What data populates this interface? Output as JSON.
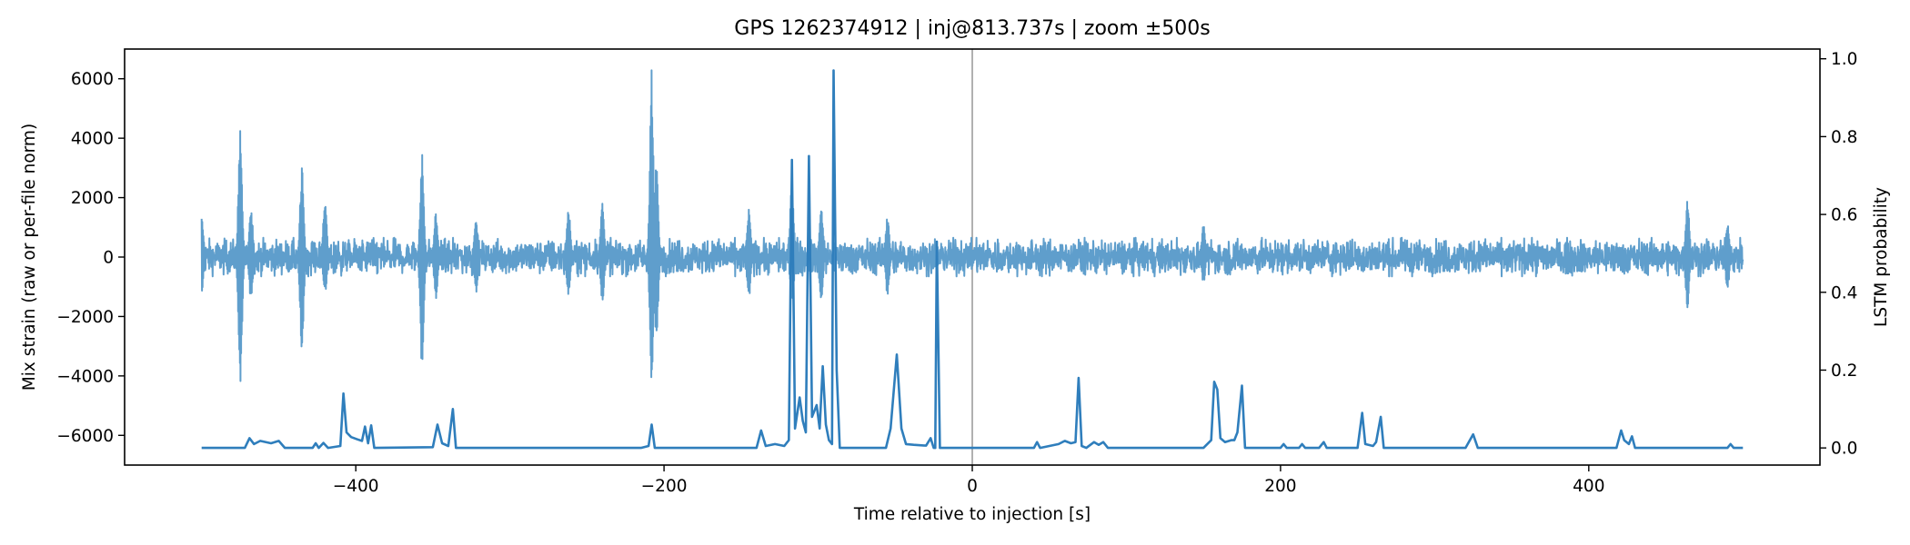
{
  "chart_data": {
    "type": "line",
    "title": "GPS 1262374912 | inj@813.737s | zoom ±500s",
    "xlabel": "Time relative to injection [s]",
    "ylabel_left": "Mix strain (raw or per-file norm)",
    "ylabel_right": "LSTM probability",
    "xlim": [
      -550,
      550
    ],
    "ylim_left": [
      -7000,
      7000
    ],
    "ylim_right": [
      -0.044,
      1.025
    ],
    "x_ticks": [
      -400,
      -200,
      0,
      200,
      400
    ],
    "x_tick_labels": [
      "−400",
      "−200",
      "0",
      "200",
      "400"
    ],
    "y_left_ticks": [
      -6000,
      -4000,
      -2000,
      0,
      2000,
      4000,
      6000
    ],
    "y_left_tick_labels": [
      "−6000",
      "−4000",
      "−2000",
      "0",
      "2000",
      "4000",
      "6000"
    ],
    "y_right_ticks": [
      0.0,
      0.2,
      0.4,
      0.6,
      0.8,
      1.0
    ],
    "y_right_tick_labels": [
      "0.0",
      "0.2",
      "0.4",
      "0.6",
      "0.8",
      "1.0"
    ],
    "reference_line_x": 0,
    "grid": false,
    "colors": {
      "strain": "#5f9ecc",
      "probability": "#2f7ebc",
      "reference_line": "#b0b0b0"
    },
    "series": [
      {
        "axis": "left",
        "x_range": [
          -500,
          500
        ],
        "baseline_amplitude": 500,
        "spikes": [
          {
            "x": -500,
            "max": 1400,
            "min": -1200
          },
          {
            "x": -475,
            "max": 4400,
            "min": -4500
          },
          {
            "x": -468,
            "max": 1700,
            "min": -1500
          },
          {
            "x": -435,
            "max": 3000,
            "min": -3200
          },
          {
            "x": -420,
            "max": 1900,
            "min": -1300
          },
          {
            "x": -357,
            "max": 3600,
            "min": -3800
          },
          {
            "x": -348,
            "max": 1500,
            "min": -1400
          },
          {
            "x": -322,
            "max": 1400,
            "min": -1200
          },
          {
            "x": -262,
            "max": 1700,
            "min": -1300
          },
          {
            "x": -240,
            "max": 1800,
            "min": -1500
          },
          {
            "x": -208,
            "max": 6400,
            "min": -4400
          },
          {
            "x": -205,
            "max": 3200,
            "min": -3000
          },
          {
            "x": -145,
            "max": 1600,
            "min": -1400
          },
          {
            "x": -117,
            "max": 2600,
            "min": -1800
          },
          {
            "x": -98,
            "max": 1800,
            "min": -1600
          },
          {
            "x": -55,
            "max": 1400,
            "min": -1300
          },
          {
            "x": 150,
            "max": 1100,
            "min": -900
          },
          {
            "x": 464,
            "max": 2000,
            "min": -1800
          },
          {
            "x": 490,
            "max": 1200,
            "min": -1100
          }
        ]
      },
      {
        "axis": "right",
        "points": [
          [
            -500,
            0.0
          ],
          [
            -472,
            0.0
          ],
          [
            -469,
            0.025
          ],
          [
            -466,
            0.01
          ],
          [
            -462,
            0.018
          ],
          [
            -455,
            0.012
          ],
          [
            -450,
            0.018
          ],
          [
            -446,
            0.0
          ],
          [
            -428,
            0.0
          ],
          [
            -426,
            0.012
          ],
          [
            -424,
            0.0
          ],
          [
            -421,
            0.013
          ],
          [
            -418,
            0.0
          ],
          [
            -410,
            0.005
          ],
          [
            -408,
            0.14
          ],
          [
            -406,
            0.04
          ],
          [
            -403,
            0.028
          ],
          [
            -399,
            0.022
          ],
          [
            -396,
            0.018
          ],
          [
            -394,
            0.055
          ],
          [
            -392,
            0.012
          ],
          [
            -390,
            0.058
          ],
          [
            -388,
            0.0
          ],
          [
            -350,
            0.002
          ],
          [
            -347,
            0.06
          ],
          [
            -344,
            0.012
          ],
          [
            -340,
            0.005
          ],
          [
            -337,
            0.1
          ],
          [
            -335,
            0.0
          ],
          [
            -215,
            0.0
          ],
          [
            -210,
            0.005
          ],
          [
            -208,
            0.06
          ],
          [
            -206,
            0.0
          ],
          [
            -140,
            0.0
          ],
          [
            -137,
            0.045
          ],
          [
            -134,
            0.005
          ],
          [
            -128,
            0.01
          ],
          [
            -122,
            0.005
          ],
          [
            -119,
            0.02
          ],
          [
            -117,
            0.74
          ],
          [
            -115,
            0.05
          ],
          [
            -112,
            0.13
          ],
          [
            -110,
            0.07
          ],
          [
            -108,
            0.04
          ],
          [
            -106,
            0.75
          ],
          [
            -104,
            0.08
          ],
          [
            -101,
            0.11
          ],
          [
            -99,
            0.05
          ],
          [
            -97,
            0.21
          ],
          [
            -95,
            0.06
          ],
          [
            -93,
            0.02
          ],
          [
            -91,
            0.01
          ],
          [
            -90,
            0.97
          ],
          [
            -88,
            0.2
          ],
          [
            -86,
            0.0
          ],
          [
            -56,
            0.0
          ],
          [
            -53,
            0.05
          ],
          [
            -49,
            0.24
          ],
          [
            -46,
            0.05
          ],
          [
            -43,
            0.01
          ],
          [
            -38,
            0.008
          ],
          [
            -30,
            0.006
          ],
          [
            -27,
            0.025
          ],
          [
            -25,
            0.0
          ],
          [
            -24,
            0.0
          ],
          [
            -23,
            0.53
          ],
          [
            -21,
            0.0
          ],
          [
            40,
            0.0
          ],
          [
            42,
            0.015
          ],
          [
            44,
            0.0
          ],
          [
            56,
            0.01
          ],
          [
            60,
            0.018
          ],
          [
            64,
            0.012
          ],
          [
            67,
            0.015
          ],
          [
            69,
            0.18
          ],
          [
            71,
            0.005
          ],
          [
            74,
            0.0
          ],
          [
            79,
            0.015
          ],
          [
            82,
            0.008
          ],
          [
            85,
            0.015
          ],
          [
            88,
            0.0
          ],
          [
            150,
            0.0
          ],
          [
            155,
            0.02
          ],
          [
            157,
            0.17
          ],
          [
            159,
            0.15
          ],
          [
            161,
            0.025
          ],
          [
            164,
            0.015
          ],
          [
            168,
            0.02
          ],
          [
            170,
            0.02
          ],
          [
            172,
            0.04
          ],
          [
            175,
            0.16
          ],
          [
            177,
            0.0
          ],
          [
            200,
            0.0
          ],
          [
            202,
            0.01
          ],
          [
            204,
            0.0
          ],
          [
            212,
            0.0
          ],
          [
            214,
            0.01
          ],
          [
            216,
            0.0
          ],
          [
            225,
            0.0
          ],
          [
            228,
            0.015
          ],
          [
            230,
            0.0
          ],
          [
            250,
            0.0
          ],
          [
            253,
            0.09
          ],
          [
            255,
            0.01
          ],
          [
            260,
            0.005
          ],
          [
            262,
            0.015
          ],
          [
            265,
            0.08
          ],
          [
            267,
            0.0
          ],
          [
            320,
            0.0
          ],
          [
            325,
            0.035
          ],
          [
            328,
            0.0
          ],
          [
            418,
            0.0
          ],
          [
            421,
            0.045
          ],
          [
            423,
            0.02
          ],
          [
            426,
            0.01
          ],
          [
            428,
            0.03
          ],
          [
            430,
            0.0
          ],
          [
            490,
            0.0
          ],
          [
            492,
            0.01
          ],
          [
            494,
            0.0
          ],
          [
            500,
            0.0
          ]
        ]
      }
    ]
  }
}
